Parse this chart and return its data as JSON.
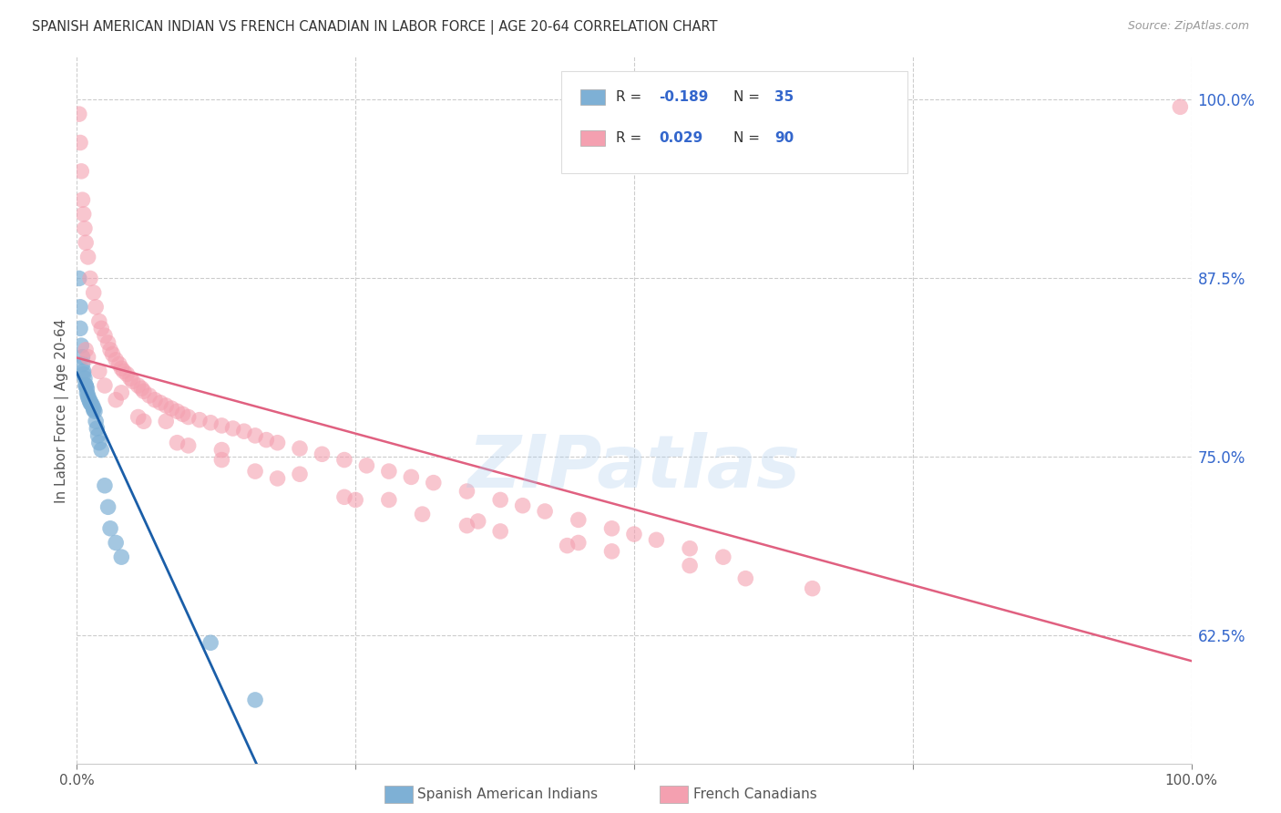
{
  "title": "SPANISH AMERICAN INDIAN VS FRENCH CANADIAN IN LABOR FORCE | AGE 20-64 CORRELATION CHART",
  "source": "Source: ZipAtlas.com",
  "ylabel": "In Labor Force | Age 20-64",
  "xlim": [
    0.0,
    1.0
  ],
  "ylim": [
    0.535,
    1.03
  ],
  "yticks": [
    0.625,
    0.75,
    0.875,
    1.0
  ],
  "ytick_labels": [
    "62.5%",
    "75.0%",
    "87.5%",
    "100.0%"
  ],
  "blue_color": "#7EB0D5",
  "pink_color": "#F4A0B0",
  "blue_trend_color": "#1A5EA8",
  "pink_trend_color": "#E06080",
  "dash_color": "#BBBBBB",
  "background_color": "#ffffff",
  "grid_color": "#CCCCCC",
  "watermark": "ZIPatlas",
  "blue_r": -0.189,
  "blue_n": 35,
  "pink_r": 0.029,
  "pink_n": 90,
  "blue_x": [
    0.002,
    0.003,
    0.003,
    0.004,
    0.005,
    0.005,
    0.006,
    0.006,
    0.007,
    0.008,
    0.008,
    0.009,
    0.009,
    0.01,
    0.01,
    0.011,
    0.012,
    0.012,
    0.013,
    0.014,
    0.015,
    0.015,
    0.016,
    0.017,
    0.018,
    0.019,
    0.02,
    0.022,
    0.025,
    0.028,
    0.03,
    0.035,
    0.04,
    0.12,
    0.16
  ],
  "blue_y": [
    0.875,
    0.855,
    0.84,
    0.828,
    0.82,
    0.815,
    0.81,
    0.808,
    0.805,
    0.8,
    0.8,
    0.798,
    0.795,
    0.793,
    0.792,
    0.79,
    0.789,
    0.788,
    0.787,
    0.786,
    0.784,
    0.783,
    0.782,
    0.775,
    0.77,
    0.765,
    0.76,
    0.755,
    0.73,
    0.715,
    0.7,
    0.69,
    0.68,
    0.62,
    0.58
  ],
  "pink_x": [
    0.002,
    0.003,
    0.004,
    0.005,
    0.006,
    0.007,
    0.008,
    0.01,
    0.012,
    0.015,
    0.017,
    0.02,
    0.022,
    0.025,
    0.028,
    0.03,
    0.032,
    0.035,
    0.038,
    0.04,
    0.042,
    0.045,
    0.048,
    0.05,
    0.055,
    0.058,
    0.06,
    0.065,
    0.07,
    0.075,
    0.08,
    0.085,
    0.09,
    0.095,
    0.1,
    0.11,
    0.12,
    0.13,
    0.14,
    0.15,
    0.16,
    0.17,
    0.18,
    0.2,
    0.22,
    0.24,
    0.26,
    0.28,
    0.3,
    0.32,
    0.35,
    0.38,
    0.4,
    0.42,
    0.45,
    0.48,
    0.5,
    0.52,
    0.55,
    0.58,
    0.02,
    0.035,
    0.06,
    0.09,
    0.13,
    0.18,
    0.24,
    0.31,
    0.38,
    0.44,
    0.01,
    0.04,
    0.08,
    0.13,
    0.2,
    0.28,
    0.36,
    0.45,
    0.55,
    0.66,
    0.008,
    0.025,
    0.055,
    0.1,
    0.16,
    0.25,
    0.35,
    0.48,
    0.6,
    0.99
  ],
  "pink_y": [
    0.99,
    0.97,
    0.95,
    0.93,
    0.92,
    0.91,
    0.9,
    0.89,
    0.875,
    0.865,
    0.855,
    0.845,
    0.84,
    0.835,
    0.83,
    0.825,
    0.822,
    0.818,
    0.815,
    0.812,
    0.81,
    0.808,
    0.805,
    0.803,
    0.8,
    0.798,
    0.796,
    0.793,
    0.79,
    0.788,
    0.786,
    0.784,
    0.782,
    0.78,
    0.778,
    0.776,
    0.774,
    0.772,
    0.77,
    0.768,
    0.765,
    0.762,
    0.76,
    0.756,
    0.752,
    0.748,
    0.744,
    0.74,
    0.736,
    0.732,
    0.726,
    0.72,
    0.716,
    0.712,
    0.706,
    0.7,
    0.696,
    0.692,
    0.686,
    0.68,
    0.81,
    0.79,
    0.775,
    0.76,
    0.748,
    0.735,
    0.722,
    0.71,
    0.698,
    0.688,
    0.82,
    0.795,
    0.775,
    0.755,
    0.738,
    0.72,
    0.705,
    0.69,
    0.674,
    0.658,
    0.825,
    0.8,
    0.778,
    0.758,
    0.74,
    0.72,
    0.702,
    0.684,
    0.665,
    0.995
  ]
}
